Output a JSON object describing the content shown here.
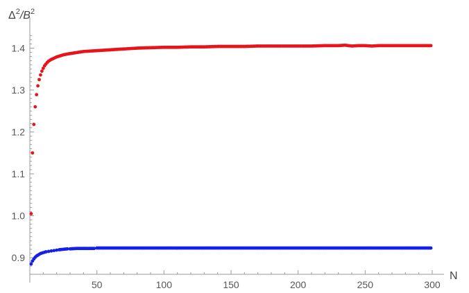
{
  "chart_data": {
    "type": "scatter",
    "ylabel": {
      "base": "Δ",
      "exp1": "2",
      "slash": "/B",
      "exp2": "2"
    },
    "xlabel": "N",
    "xlim": [
      0,
      300
    ],
    "ylim": [
      0.88,
      1.43
    ],
    "x_ticks": [
      50,
      100,
      150,
      200,
      250,
      300
    ],
    "x_tick_labels": [
      "50",
      "100",
      "150",
      "200",
      "250",
      "300"
    ],
    "y_ticks": [
      0.9,
      1.0,
      1.1,
      1.2,
      1.3,
      1.4
    ],
    "y_tick_labels": [
      "0.9",
      "1.0",
      "1.1",
      "1.2",
      "1.3",
      "1.4"
    ],
    "series": [
      {
        "color": "#e8141b",
        "points": [
          [
            1,
            1.005
          ],
          [
            2,
            1.15
          ],
          [
            3,
            1.218
          ],
          [
            4,
            1.26
          ],
          [
            5,
            1.289
          ],
          [
            6,
            1.31
          ],
          [
            7,
            1.325
          ],
          [
            8,
            1.336
          ],
          [
            9,
            1.345
          ],
          [
            10,
            1.352
          ],
          [
            11,
            1.358
          ],
          [
            12,
            1.362
          ],
          [
            13,
            1.366
          ],
          [
            14,
            1.369
          ],
          [
            15,
            1.371
          ],
          [
            16,
            1.373
          ],
          [
            18,
            1.376
          ],
          [
            20,
            1.379
          ],
          [
            22,
            1.381
          ],
          [
            25,
            1.384
          ],
          [
            28,
            1.386
          ],
          [
            32,
            1.388
          ],
          [
            36,
            1.39
          ],
          [
            40,
            1.392
          ],
          [
            45,
            1.393
          ],
          [
            50,
            1.394
          ],
          [
            55,
            1.395
          ],
          [
            60,
            1.396
          ],
          [
            65,
            1.397
          ],
          [
            70,
            1.398
          ],
          [
            75,
            1.399
          ],
          [
            80,
            1.4
          ],
          [
            90,
            1.401
          ],
          [
            100,
            1.402
          ],
          [
            110,
            1.402
          ],
          [
            120,
            1.403
          ],
          [
            130,
            1.403
          ],
          [
            140,
            1.404
          ],
          [
            150,
            1.404
          ],
          [
            160,
            1.404
          ],
          [
            170,
            1.405
          ],
          [
            180,
            1.405
          ],
          [
            190,
            1.405
          ],
          [
            200,
            1.405
          ],
          [
            210,
            1.405
          ],
          [
            220,
            1.406
          ],
          [
            230,
            1.406
          ],
          [
            235,
            1.407
          ],
          [
            240,
            1.405
          ],
          [
            245,
            1.406
          ],
          [
            250,
            1.406
          ],
          [
            255,
            1.405
          ],
          [
            260,
            1.406
          ],
          [
            270,
            1.406
          ],
          [
            280,
            1.406
          ],
          [
            290,
            1.406
          ],
          [
            299,
            1.406
          ]
        ]
      },
      {
        "color": "#1420e8",
        "points": [
          [
            1,
            0.885
          ],
          [
            2,
            0.892
          ],
          [
            3,
            0.897
          ],
          [
            4,
            0.901
          ],
          [
            5,
            0.904
          ],
          [
            6,
            0.906
          ],
          [
            7,
            0.908
          ],
          [
            8,
            0.91
          ],
          [
            9,
            0.911
          ],
          [
            10,
            0.912
          ],
          [
            12,
            0.914
          ],
          [
            14,
            0.915
          ],
          [
            16,
            0.916
          ],
          [
            18,
            0.917
          ],
          [
            20,
            0.918
          ],
          [
            22,
            0.919
          ],
          [
            25,
            0.92
          ],
          [
            28,
            0.921
          ],
          [
            30,
            0.921
          ],
          [
            35,
            0.922
          ],
          [
            40,
            0.922
          ],
          [
            45,
            0.922
          ],
          [
            48,
            0.922
          ],
          [
            50,
            0.923
          ],
          [
            60,
            0.923
          ],
          [
            70,
            0.923
          ],
          [
            80,
            0.923
          ],
          [
            100,
            0.923
          ],
          [
            120,
            0.923
          ],
          [
            150,
            0.923
          ],
          [
            180,
            0.923
          ],
          [
            200,
            0.923
          ],
          [
            230,
            0.923
          ],
          [
            260,
            0.923
          ],
          [
            280,
            0.923
          ],
          [
            299,
            0.923
          ]
        ]
      }
    ]
  }
}
